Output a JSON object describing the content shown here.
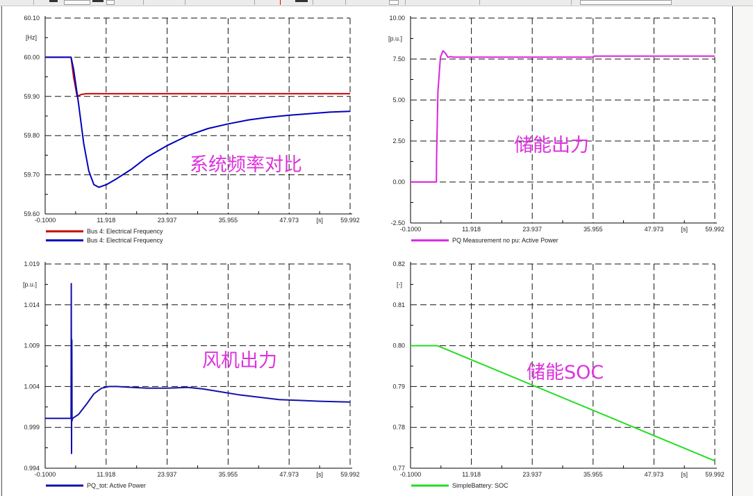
{
  "toolbar": {
    "icons": [
      "toolbar-button",
      "toolbar-button",
      "toolbar-dropdown",
      "toolbar-button"
    ]
  },
  "chart_data": [
    {
      "type": "line",
      "title": "",
      "annotation": "系统频率对比",
      "xlabel": "[s]",
      "ylabel": "[Hz]",
      "xlim": [
        -0.1,
        59.992
      ],
      "ylim": [
        59.6,
        60.1
      ],
      "x_ticks": [
        "-0.1000",
        "11.918",
        "23.937",
        "35.955",
        "47.973",
        "59.992"
      ],
      "y_ticks": [
        "60.10",
        "60.00",
        "59.90",
        "59.80",
        "59.70",
        "59.60"
      ],
      "grid": true,
      "legend_position": "bottom-left",
      "series": [
        {
          "name": "Bus 4: Electrical Frequency",
          "color": "#cc0000",
          "x": [
            -0.1,
            5.0,
            5.5,
            6.2,
            7.0,
            8.0,
            59.992
          ],
          "y": [
            60.0,
            60.0,
            59.95,
            59.9,
            59.905,
            59.907,
            59.907
          ]
        },
        {
          "name": "Bus 4: Electrical Frequency",
          "color": "#0000bb",
          "x": [
            -0.1,
            5.0,
            5.5,
            6.5,
            7.5,
            8.5,
            9.5,
            10.5,
            12,
            14,
            17,
            20,
            24,
            28,
            32,
            36,
            40,
            44,
            48,
            52,
            56,
            59.992
          ],
          "y": [
            60.0,
            60.0,
            59.97,
            59.88,
            59.78,
            59.71,
            59.675,
            59.668,
            59.675,
            59.69,
            59.715,
            59.745,
            59.775,
            59.8,
            59.818,
            59.83,
            59.84,
            59.847,
            59.852,
            59.856,
            59.86,
            59.862
          ]
        }
      ]
    },
    {
      "type": "line",
      "title": "",
      "annotation": "储能出力",
      "xlabel": "[s]",
      "ylabel": "[p.u.]",
      "xlim": [
        -0.1,
        59.992
      ],
      "ylim": [
        -2.5,
        10.0
      ],
      "x_ticks": [
        "-0.1000",
        "11.918",
        "23.937",
        "35.955",
        "47.973",
        "59.992"
      ],
      "y_ticks": [
        "10.00",
        "7.50",
        "5.00",
        "2.50",
        "0.00",
        "-2.50"
      ],
      "grid": true,
      "legend_position": "bottom-left",
      "series": [
        {
          "name": "PQ Measurement no pu: Active Power",
          "color": "#dd22dd",
          "x": [
            -0.1,
            5.0,
            5.05,
            5.3,
            5.8,
            6.3,
            6.8,
            7.3,
            7.8,
            8.3,
            36.0,
            36.1,
            59.992
          ],
          "y": [
            0.0,
            0.0,
            1.5,
            5.5,
            7.6,
            8.0,
            7.85,
            7.6,
            7.65,
            7.62,
            7.62,
            7.68,
            7.68
          ]
        }
      ]
    },
    {
      "type": "line",
      "title": "",
      "annotation": "风机出力",
      "xlabel": "[s]",
      "ylabel": "[p.u.]",
      "xlim": [
        -0.1,
        59.992
      ],
      "ylim": [
        0.994,
        1.019
      ],
      "x_ticks": [
        "-0.1000",
        "11.918",
        "23.937",
        "35.955",
        "47.973",
        "59.992"
      ],
      "y_ticks": [
        "1.019",
        "1.014",
        "1.009",
        "1.004",
        "0.999",
        "0.994"
      ],
      "grid": true,
      "legend_position": "bottom-left",
      "series": [
        {
          "name": "PQ_tot: Active Power",
          "color": "#1111aa",
          "x": [
            -0.1,
            5.0,
            5.05,
            5.1,
            5.15,
            5.2,
            5.3,
            6.5,
            8,
            9.5,
            11,
            12.5,
            14,
            17,
            20,
            24,
            28,
            31,
            35,
            38,
            42,
            46,
            50,
            54,
            59.992
          ],
          "y": [
            1.0001,
            1.0001,
            1.0166,
            0.9958,
            1.0097,
            0.9998,
            1.0001,
            1.0006,
            1.0018,
            1.0031,
            1.0038,
            1.004,
            1.004,
            1.0039,
            1.0038,
            1.0038,
            1.0039,
            1.0037,
            1.0033,
            1.003,
            1.0027,
            1.0024,
            1.0023,
            1.0022,
            1.0021
          ]
        }
      ]
    },
    {
      "type": "line",
      "title": "",
      "annotation": "储能SOC",
      "xlabel": "[s]",
      "ylabel": "[-]",
      "xlim": [
        -0.1,
        59.992
      ],
      "ylim": [
        0.77,
        0.82
      ],
      "x_ticks": [
        "-0.1000",
        "11.918",
        "23.937",
        "35.955",
        "47.973",
        "59.992"
      ],
      "y_ticks": [
        "0.82",
        "0.81",
        "0.80",
        "0.79",
        "0.78",
        "0.77"
      ],
      "grid": true,
      "legend_position": "bottom-left",
      "series": [
        {
          "name": "SimpleBattery: SOC",
          "color": "#22dd22",
          "x": [
            -0.1,
            5.2,
            59.992
          ],
          "y": [
            0.8,
            0.8,
            0.7718
          ]
        }
      ]
    }
  ]
}
